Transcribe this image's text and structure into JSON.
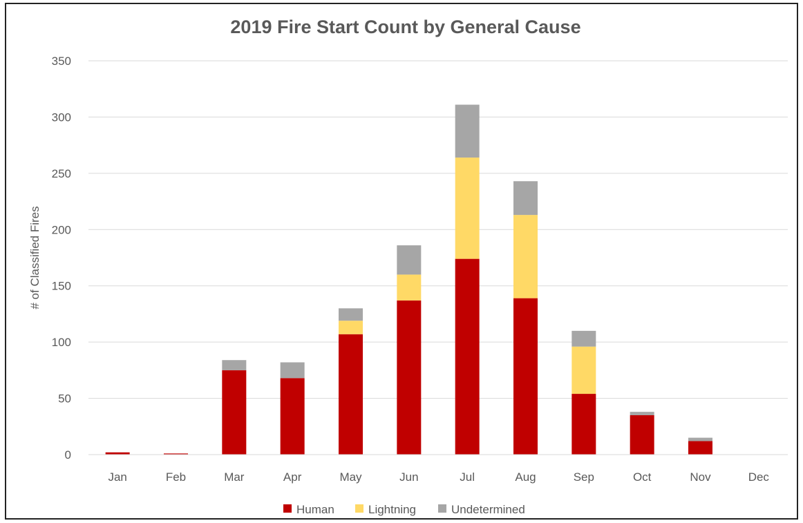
{
  "chart_data": {
    "type": "bar",
    "stacked": true,
    "title": "2019 Fire Start Count by General Cause",
    "xlabel": "",
    "ylabel": "# of Classified Fires",
    "ylim": [
      0,
      350
    ],
    "yticks": [
      0,
      50,
      100,
      150,
      200,
      250,
      300,
      350
    ],
    "grid": true,
    "legend_position": "bottom",
    "categories": [
      "Jan",
      "Feb",
      "Mar",
      "Apr",
      "May",
      "Jun",
      "Jul",
      "Aug",
      "Sep",
      "Oct",
      "Nov",
      "Dec"
    ],
    "series": [
      {
        "name": "Human",
        "color": "#c00000",
        "values": [
          2,
          1,
          75,
          68,
          107,
          137,
          174,
          139,
          54,
          35,
          12,
          0
        ]
      },
      {
        "name": "Lightning",
        "color": "#ffd966",
        "values": [
          0,
          0,
          0,
          0,
          12,
          23,
          90,
          74,
          42,
          0,
          0,
          0
        ]
      },
      {
        "name": "Undetermined",
        "color": "#a6a6a6",
        "values": [
          0,
          0,
          9,
          14,
          11,
          26,
          47,
          30,
          14,
          3,
          3,
          0
        ]
      }
    ]
  }
}
